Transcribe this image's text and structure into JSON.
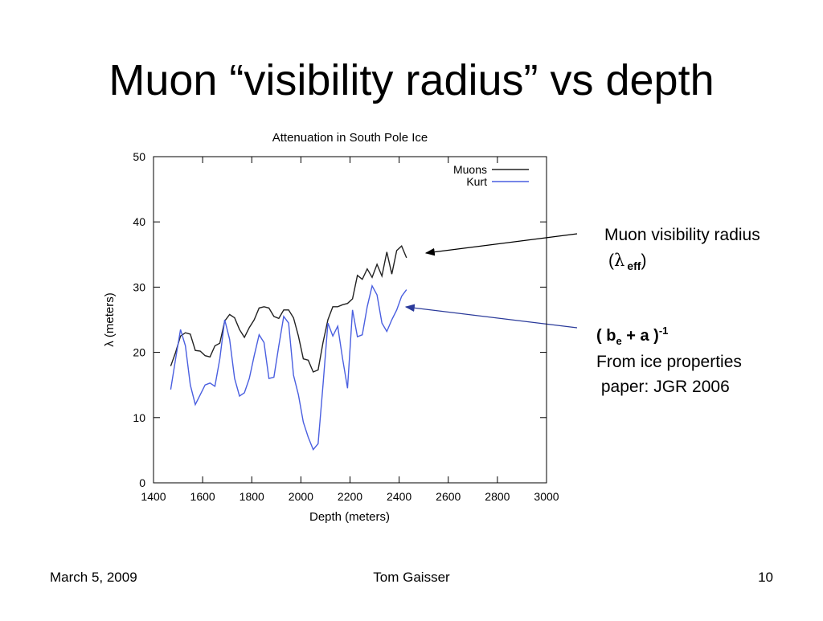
{
  "slide_title": "Muon “visibility radius” vs depth",
  "annotations": [
    {
      "parts": [
        "Muon visibility radius",
        "(",
        "λ",
        "eff",
        ")"
      ],
      "color": "#000000"
    },
    {
      "parts": [
        "( b",
        "e",
        " + a )",
        "-1",
        "From ice properties",
        " paper: JGR 2006"
      ],
      "color": "#2a3a9a"
    }
  ],
  "footer": {
    "date": "March 5, 2009",
    "author": "Tom Gaisser",
    "page": "10"
  },
  "chart_data": {
    "type": "line",
    "title": "Attenuation in South Pole Ice",
    "x_label": "Depth    (meters)",
    "y_label": "λ (meters)",
    "x": [
      1470,
      1490,
      1510,
      1530,
      1550,
      1570,
      1590,
      1610,
      1630,
      1650,
      1670,
      1690,
      1710,
      1730,
      1750,
      1770,
      1790,
      1810,
      1830,
      1850,
      1870,
      1890,
      1910,
      1930,
      1950,
      1970,
      1990,
      2010,
      2030,
      2050,
      2070,
      2090,
      2110,
      2130,
      2150,
      2170,
      2190,
      2210,
      2230,
      2250,
      2270,
      2290,
      2310,
      2330,
      2350,
      2370,
      2390,
      2410,
      2430
    ],
    "series": [
      {
        "name": "Muons",
        "color": "#222222",
        "values": [
          17.9,
          20,
          22.5,
          23,
          22.8,
          20.3,
          20.2,
          19.5,
          19.3,
          21,
          21.4,
          24.8,
          25.8,
          25.3,
          23.5,
          22.3,
          23.8,
          25,
          26.8,
          27,
          26.8,
          25.5,
          25.2,
          26.5,
          26.5,
          25.3,
          22.5,
          19,
          18.8,
          17,
          17.3,
          21.5,
          25,
          27,
          27,
          27.3,
          27.5,
          28.2,
          31.8,
          31.2,
          32.8,
          31.5,
          33.5,
          31.7,
          35.4,
          32,
          35.6,
          36.3,
          34.5
        ]
      },
      {
        "name": "Kurt",
        "color": "#4a5fe0",
        "values": [
          14.3,
          19,
          23.5,
          21,
          15,
          12,
          13.5,
          15,
          15.3,
          14.8,
          19,
          25,
          22,
          16,
          13.3,
          13.8,
          16,
          19.5,
          22.7,
          21.5,
          16,
          16.2,
          21,
          25.5,
          24.5,
          16.5,
          13.5,
          9.3,
          7,
          5.1,
          6,
          15,
          24.5,
          22.5,
          24,
          19,
          14.5,
          26.5,
          22.4,
          22.7,
          27,
          30.2,
          28.8,
          24.5,
          23.2,
          25,
          26.5,
          28.6,
          29.6
        ]
      }
    ],
    "xlim": [
      1400,
      3000
    ],
    "ylim": [
      0,
      50
    ],
    "xticks": [
      1400,
      1600,
      1800,
      2000,
      2200,
      2400,
      2600,
      2800,
      3000
    ],
    "yticks": [
      0,
      10,
      20,
      30,
      40,
      50
    ],
    "grid": false,
    "legend": "upper right"
  }
}
